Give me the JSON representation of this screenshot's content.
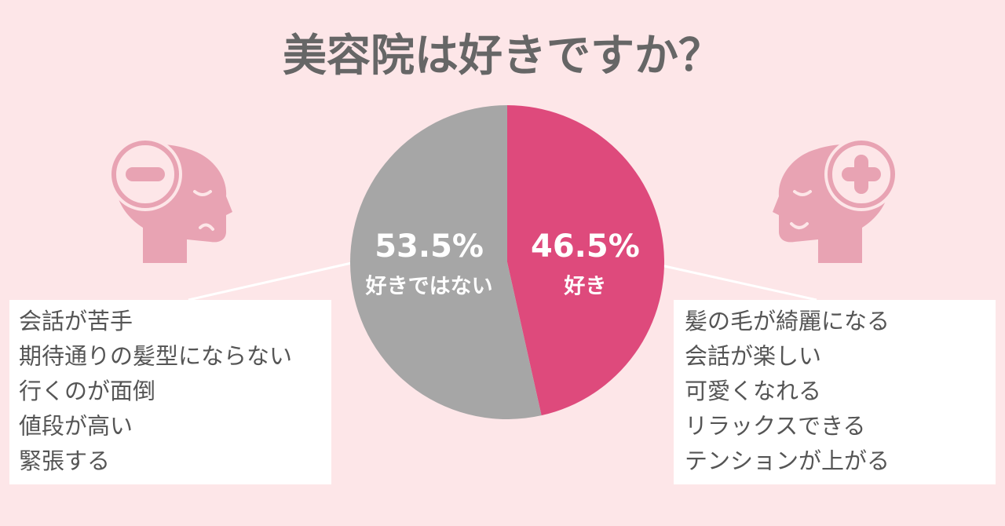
{
  "chart_data": {
    "type": "pie",
    "title": "美容院は好きですか？",
    "categories": [
      "好き",
      "好きではない"
    ],
    "values": [
      46.5,
      53.5
    ],
    "value_labels": [
      "46.5%",
      "53.5%"
    ],
    "colors": [
      "#de4a7c",
      "#a6a6a6"
    ],
    "reasons_like": [
      "髪の毛が綺麗になる",
      "会話が楽しい",
      "可愛くなれる",
      "リラックスできる",
      "テンションが上がる"
    ],
    "reasons_dislike": [
      "会話が苦手",
      "期待通りの髪型にならない",
      "行くのが面倒",
      "値段が高い",
      "緊張する"
    ]
  }
}
